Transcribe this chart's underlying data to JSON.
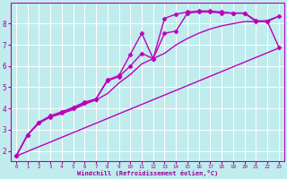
{
  "background_color": "#c0ecee",
  "grid_color": "#ffffff",
  "line_color": "#bb00bb",
  "marker_color": "#bb00bb",
  "xlabel": "Windchill (Refroidissement éolien,°C)",
  "xlabel_color": "#990099",
  "tick_color": "#990099",
  "xlim": [
    -0.5,
    23.5
  ],
  "ylim": [
    1.5,
    9.0
  ],
  "xticks": [
    0,
    1,
    2,
    3,
    4,
    5,
    6,
    7,
    8,
    9,
    10,
    11,
    12,
    13,
    14,
    15,
    16,
    17,
    18,
    19,
    20,
    21,
    22,
    23
  ],
  "yticks": [
    2,
    3,
    4,
    5,
    6,
    7,
    8
  ],
  "series": [
    {
      "x": [
        0,
        1,
        2,
        3,
        4,
        5,
        6,
        7,
        8,
        9,
        10,
        11,
        12,
        13,
        14,
        15,
        16,
        17,
        18,
        19,
        20,
        21,
        22,
        23
      ],
      "y": [
        1.75,
        2.75,
        3.35,
        3.65,
        3.85,
        4.05,
        4.3,
        4.45,
        5.35,
        5.55,
        6.55,
        7.55,
        6.35,
        8.25,
        8.45,
        8.55,
        8.6,
        8.6,
        8.55,
        8.5,
        8.5,
        8.15,
        8.1,
        6.9
      ],
      "marker": "D",
      "markersize": 2.5,
      "linewidth": 1.0,
      "has_marker": true
    },
    {
      "x": [
        0,
        1,
        2,
        3,
        4,
        5,
        6,
        7,
        8,
        9,
        10,
        11,
        12,
        13,
        14,
        15,
        16,
        17,
        18,
        19,
        20,
        21,
        22,
        23
      ],
      "y": [
        1.75,
        2.75,
        3.35,
        3.6,
        3.8,
        4.0,
        4.25,
        4.45,
        5.3,
        5.5,
        6.0,
        6.6,
        6.35,
        7.55,
        7.65,
        8.5,
        8.55,
        8.55,
        8.5,
        8.5,
        8.5,
        8.1,
        8.1,
        8.35
      ],
      "marker": "D",
      "markersize": 2.5,
      "linewidth": 1.0,
      "has_marker": true
    },
    {
      "x": [
        0,
        23
      ],
      "y": [
        1.75,
        6.85
      ],
      "marker": null,
      "markersize": 0,
      "linewidth": 1.0,
      "has_marker": false
    },
    {
      "x": [
        0,
        1,
        2,
        3,
        4,
        5,
        6,
        7,
        8,
        9,
        10,
        11,
        12,
        13,
        14,
        15,
        16,
        17,
        18,
        19,
        20,
        21,
        22,
        23
      ],
      "y": [
        1.75,
        2.75,
        3.3,
        3.6,
        3.75,
        3.95,
        4.2,
        4.4,
        4.7,
        5.2,
        5.6,
        6.1,
        6.35,
        6.6,
        7.0,
        7.3,
        7.55,
        7.75,
        7.9,
        8.0,
        8.1,
        8.1,
        8.15,
        8.35
      ],
      "marker": null,
      "markersize": 0,
      "linewidth": 1.0,
      "has_marker": false
    }
  ]
}
